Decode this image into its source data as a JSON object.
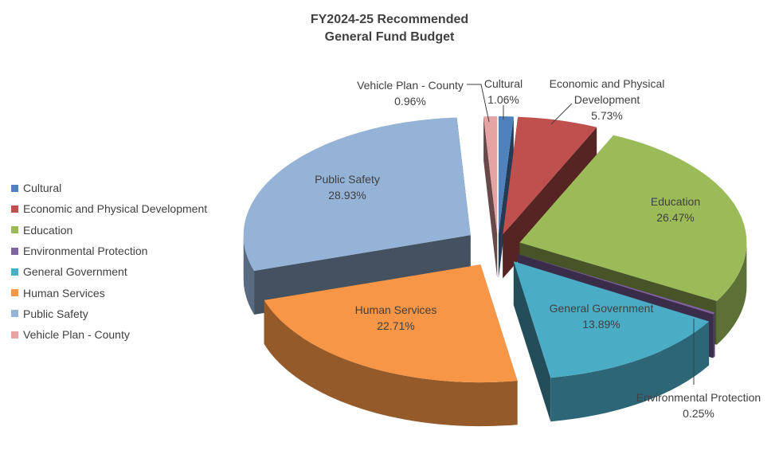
{
  "chart_data": {
    "type": "pie",
    "title": "FY2024-25 Recommended",
    "subtitle": "General Fund Budget",
    "legend_position": "left",
    "exploded": true,
    "three_d": true,
    "series": [
      {
        "name": "Cultural",
        "value": 1.06,
        "label": "1.06%",
        "color": "#4f81bd"
      },
      {
        "name": "Economic and Physical Development",
        "value": 5.73,
        "label": "5.73%",
        "color": "#c0504d"
      },
      {
        "name": "Education",
        "value": 26.47,
        "label": "26.47%",
        "color": "#9bbb59"
      },
      {
        "name": "Environmental Protection",
        "value": 0.25,
        "label": "0.25%",
        "color": "#8064a2"
      },
      {
        "name": "General Government",
        "value": 13.89,
        "label": "13.89%",
        "color": "#4bacc6"
      },
      {
        "name": "Human Services",
        "value": 22.71,
        "label": "22.71%",
        "color": "#f79646"
      },
      {
        "name": "Public Safety",
        "value": 28.93,
        "label": "28.93%",
        "color": "#95b3d7"
      },
      {
        "name": "Vehicle Plan - County",
        "value": 0.96,
        "label": "0.96%",
        "color": "#e6a3a3"
      }
    ],
    "data_labels": {
      "Cultural": [
        "Cultural",
        "1.06%"
      ],
      "Economic and Physical Development": [
        "Economic and Physical",
        "Development",
        "5.73%"
      ],
      "Education": [
        "Education",
        "26.47%"
      ],
      "Environmental Protection": [
        "Environmental Protection",
        "0.25%"
      ],
      "General Government": [
        "General Government",
        "13.89%"
      ],
      "Human Services": [
        "Human Services",
        "22.71%"
      ],
      "Public Safety": [
        "Public Safety",
        "28.93%"
      ],
      "Vehicle Plan - County": [
        "Vehicle Plan - County",
        "0.96%"
      ]
    }
  }
}
